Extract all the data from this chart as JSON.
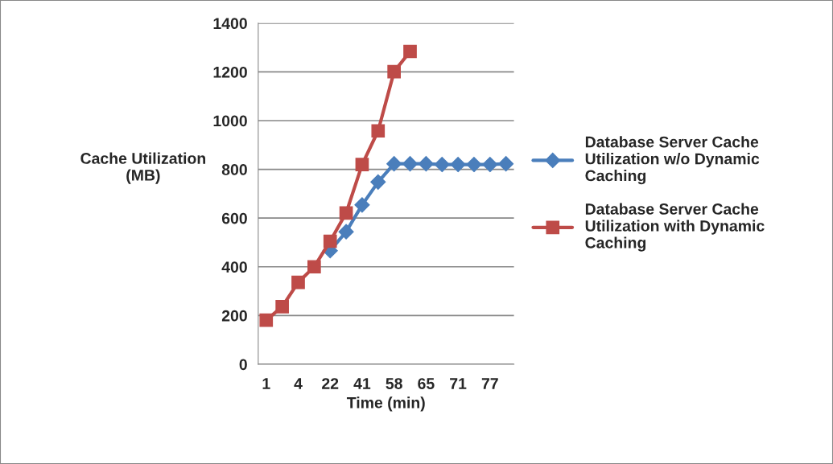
{
  "chart_data": {
    "type": "line",
    "xlabel": "Time (min)",
    "ylabel": "Cache Utilization\n(MB)",
    "categories": [
      "1",
      null,
      "4",
      null,
      "22",
      null,
      "41",
      null,
      "58",
      null,
      "65",
      null,
      "71",
      null,
      "77",
      null
    ],
    "series": [
      {
        "name": "Database Server Cache\nUtilization w/o Dynamic\nCaching",
        "color": "#4a7ebb",
        "marker": "diamond",
        "values": [
          null,
          null,
          null,
          null,
          466,
          544,
          654,
          748,
          823,
          823,
          823,
          820,
          820,
          820,
          820,
          823
        ]
      },
      {
        "name": "Database Server Cache\nUtilization with Dynamic\nCaching",
        "color": "#be4b48",
        "marker": "square",
        "values": [
          181,
          236,
          336,
          400,
          505,
          621,
          820,
          958,
          1201,
          1284,
          null,
          null,
          null,
          null,
          null,
          null
        ]
      }
    ],
    "ylim": [
      0,
      1400
    ],
    "yticks": [
      0,
      200,
      400,
      600,
      800,
      1000,
      1200,
      1400
    ],
    "grid": "y",
    "legend": "right"
  }
}
